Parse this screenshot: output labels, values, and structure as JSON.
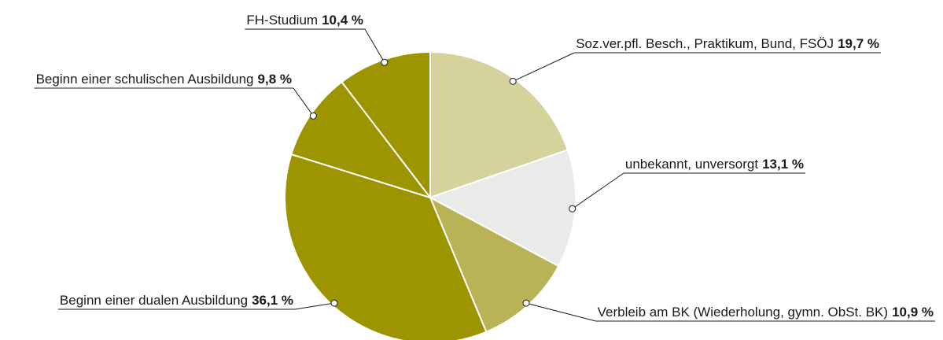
{
  "chart_data": {
    "type": "pie",
    "categories": [
      "Soz.ver.pfl. Besch., Praktikum, Bund, FSÖJ",
      "unbekannt, unversorgt",
      "Verbleib am BK (Wiederholung, gymn. ObSt. BK)",
      "Beginn einer dualen Ausbildung",
      "Beginn einer schulischen Ausbildung",
      "FH-Studium"
    ],
    "values": [
      19.7,
      13.1,
      10.9,
      36.1,
      9.8,
      10.4
    ],
    "value_labels": [
      "19,7 %",
      "13,1 %",
      "10,9 %",
      "36,1 %",
      "9,8 %",
      "10,4 %"
    ],
    "colors": [
      "#d6d29b",
      "#eaebe8",
      "#bab257",
      "#9c9500",
      "#9c9500",
      "#9c9500"
    ]
  }
}
